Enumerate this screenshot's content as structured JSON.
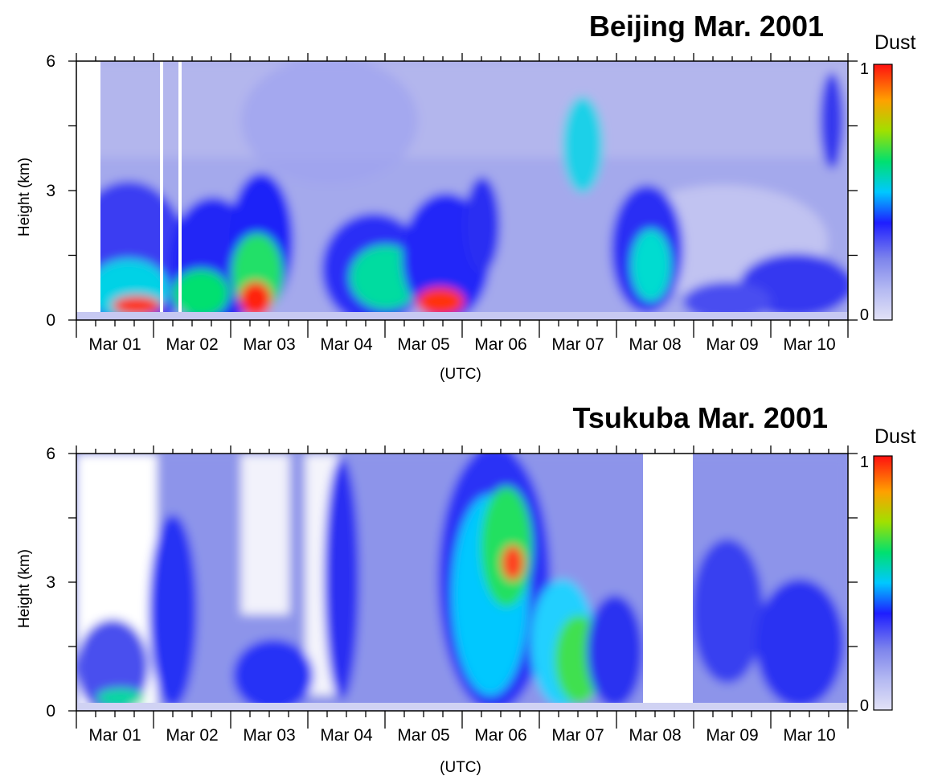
{
  "chart_data": [
    {
      "type": "heatmap",
      "title": "Beijing  Mar. 2001",
      "xlabel": "(UTC)",
      "ylabel": "Height (km)",
      "ylim": [
        0,
        6
      ],
      "xlim": [
        0,
        10
      ],
      "y_ticks": [
        "0",
        "3",
        "6"
      ],
      "x_tick_labels": [
        "Mar 01",
        "Mar 02",
        "Mar 03",
        "Mar 04",
        "Mar 05",
        "Mar 06",
        "Mar 07",
        "Mar 08",
        "Mar 09",
        "Mar 10"
      ],
      "colorbar": {
        "title": "Dust",
        "min": 0,
        "max": 1,
        "min_label": "0",
        "max_label": "1"
      },
      "missing_data_days": [
        [
          0.0,
          0.28
        ],
        [
          1.05,
          1.08
        ],
        [
          1.18,
          1.2
        ]
      ],
      "dust_layers": [
        {
          "day": 0.6,
          "top_km": 2.9,
          "peak_height_km": 0.2,
          "peak_intensity": 0.88
        },
        {
          "day": 1.4,
          "top_km": 2.5,
          "peak_height_km": 0.3,
          "peak_intensity": 0.82
        },
        {
          "day": 2.3,
          "top_km": 3.0,
          "peak_height_km": 0.4,
          "peak_intensity": 0.95
        },
        {
          "day": 3.5,
          "top_km": 2.0,
          "peak_height_km": 0.6,
          "peak_intensity": 0.55
        },
        {
          "day": 4.0,
          "top_km": 2.2,
          "peak_height_km": 0.8,
          "peak_intensity": 0.6
        },
        {
          "day": 4.5,
          "top_km": 3.2,
          "peak_height_km": 0.3,
          "peak_intensity": 0.92
        },
        {
          "day": 7.2,
          "top_km": 3.0,
          "peak_height_km": 0.5,
          "peak_intensity": 0.5
        },
        {
          "day": 8.1,
          "top_km": 2.0,
          "peak_height_km": 0.2,
          "peak_intensity": 0.4
        },
        {
          "day": 9.3,
          "top_km": 1.7,
          "peak_height_km": 0.4,
          "peak_intensity": 0.3
        }
      ]
    },
    {
      "type": "heatmap",
      "title": "Tsukuba  Mar. 2001",
      "xlabel": "(UTC)",
      "ylabel": "Height (km)",
      "ylim": [
        0,
        6
      ],
      "xlim": [
        0,
        10
      ],
      "y_ticks": [
        "0",
        "3",
        "6"
      ],
      "x_tick_labels": [
        "Mar 01",
        "Mar 02",
        "Mar 03",
        "Mar 04",
        "Mar 05",
        "Mar 06",
        "Mar 07",
        "Mar 08",
        "Mar 09",
        "Mar 10"
      ],
      "colorbar": {
        "title": "Dust",
        "min": 0,
        "max": 1,
        "min_label": "0",
        "max_label": "1"
      },
      "missing_data_days": [
        [
          7.4,
          8.0
        ]
      ],
      "dust_layers": [
        {
          "day": 0.4,
          "top_km": 1.3,
          "peak_height_km": 0.3,
          "peak_intensity": 0.45
        },
        {
          "day": 1.1,
          "top_km": 4.5,
          "peak_height_km": 2.5,
          "peak_intensity": 0.3
        },
        {
          "day": 2.5,
          "top_km": 1.8,
          "peak_height_km": 0.9,
          "peak_intensity": 0.3
        },
        {
          "day": 3.4,
          "top_km": 5.5,
          "peak_height_km": 3.0,
          "peak_intensity": 0.25
        },
        {
          "day": 5.4,
          "top_km": 6.0,
          "peak_height_km": 3.4,
          "peak_intensity": 0.9
        },
        {
          "day": 6.3,
          "top_km": 3.0,
          "peak_height_km": 1.2,
          "peak_intensity": 0.6
        },
        {
          "day": 6.8,
          "top_km": 2.8,
          "peak_height_km": 1.0,
          "peak_intensity": 0.45
        },
        {
          "day": 9.3,
          "top_km": 3.5,
          "peak_height_km": 1.5,
          "peak_intensity": 0.3
        }
      ]
    }
  ]
}
